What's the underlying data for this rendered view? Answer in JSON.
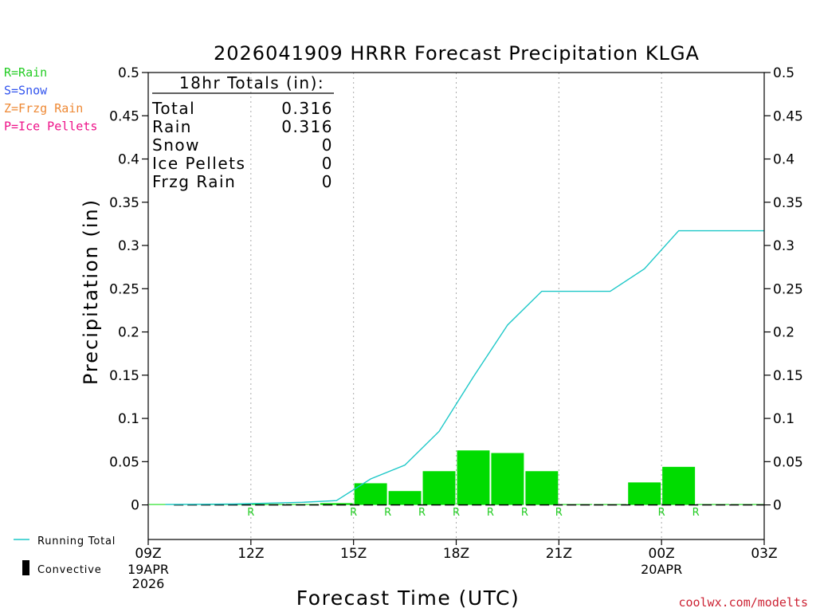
{
  "chart_data": {
    "type": "bar+line",
    "title": "2026041909 HRRR Forecast Precipitation KLGA",
    "xlabel": "Forecast Time (UTC)",
    "ylabel": "Precipitation (in)",
    "ylim": [
      -0.04,
      0.5
    ],
    "yticks": [
      0,
      0.05,
      0.1,
      0.15,
      0.2,
      0.25,
      0.3,
      0.35,
      0.4,
      0.45,
      0.5
    ],
    "ytick_labels": [
      "0",
      "0.05",
      "0.1",
      "0.15",
      "0.2",
      "0.25",
      "0.3",
      "0.35",
      "0.4",
      "0.45",
      "0.5"
    ],
    "xlim_hours": [
      0,
      18
    ],
    "xticks": [
      {
        "hour": 0,
        "label": "09Z",
        "sub": [
          "19APR",
          "2026"
        ]
      },
      {
        "hour": 3,
        "label": "12Z",
        "sub": []
      },
      {
        "hour": 6,
        "label": "15Z",
        "sub": []
      },
      {
        "hour": 9,
        "label": "18Z",
        "sub": []
      },
      {
        "hour": 12,
        "label": "21Z",
        "sub": []
      },
      {
        "hour": 15,
        "label": "00Z",
        "sub": [
          "20APR"
        ]
      },
      {
        "hour": 18,
        "label": "03Z",
        "sub": []
      }
    ],
    "gridline_hours": [
      3,
      6,
      9,
      12,
      15
    ],
    "hourly_precip": {
      "hours": [
        1,
        2,
        3,
        4,
        5,
        6,
        7,
        8,
        9,
        10,
        11,
        12,
        13,
        14,
        15,
        16,
        17,
        18
      ],
      "values": [
        0.0005,
        0.0002,
        0.0003,
        0.001,
        0.001,
        0.002,
        0.025,
        0.016,
        0.039,
        0.063,
        0.06,
        0.039,
        0.0,
        0.0,
        0.026,
        0.044,
        0.0,
        0.0
      ]
    },
    "running_total": {
      "name": "Running Total",
      "hours": [
        1,
        2,
        3,
        4,
        5,
        6,
        7,
        8,
        9,
        10,
        11,
        12,
        13,
        14,
        15,
        16,
        17,
        18
      ],
      "values": [
        0.0005,
        0.0007,
        0.001,
        0.002,
        0.003,
        0.005,
        0.03,
        0.046,
        0.085,
        0.148,
        0.208,
        0.247,
        0.247,
        0.247,
        0.273,
        0.317,
        0.317,
        0.317
      ]
    },
    "type_markers": {
      "hours": [
        3,
        6,
        7,
        8,
        9,
        10,
        11,
        12,
        15,
        16
      ],
      "label": "R"
    },
    "totals_box": {
      "heading": "18hr Totals (in):",
      "rows": [
        {
          "label": "Total",
          "value": "0.316"
        },
        {
          "label": "Rain",
          "value": "0.316"
        },
        {
          "label": "Snow",
          "value": "0"
        },
        {
          "label": "Ice Pellets",
          "value": "0"
        },
        {
          "label": "Frzg Rain",
          "value": "0"
        }
      ]
    },
    "type_legend": [
      {
        "text": "R=Rain",
        "color": "#22cc22"
      },
      {
        "text": "S=Snow",
        "color": "#3355ee"
      },
      {
        "text": "Z=Frzg Rain",
        "color": "#ee8833"
      },
      {
        "text": "P=Ice Pellets",
        "color": "#ee1188"
      }
    ],
    "bottom_legend": [
      {
        "text": "Running Total",
        "kind": "line"
      },
      {
        "text": "Convective",
        "kind": "bar"
      }
    ],
    "credit": "coolwx.com/modelts"
  },
  "colors": {
    "bar": "#00dc00",
    "line": "#1ec8c8",
    "marker": "#22cc22",
    "credit": "#cc2233",
    "grid": "#aaaaaa"
  }
}
